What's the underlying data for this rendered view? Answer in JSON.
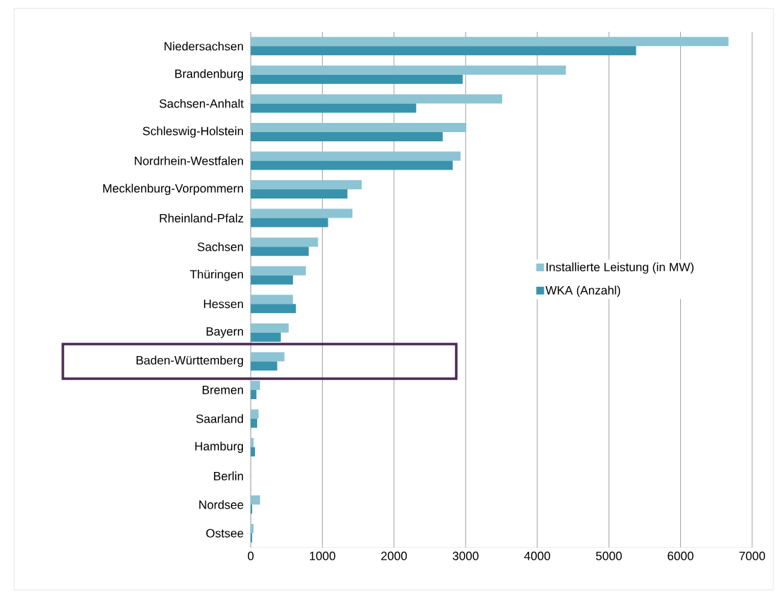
{
  "chart_data": {
    "type": "bar",
    "orientation": "horizontal",
    "categories": [
      "Niedersachsen",
      "Brandenburg",
      "Sachsen-Anhalt",
      "Schleswig-Holstein",
      "Nordrhein-Westfalen",
      "Mecklenburg-Vorpommern",
      "Rheinland-Pfalz",
      "Sachsen",
      "Thüringen",
      "Hessen",
      "Bayern",
      "Baden-Württemberg",
      "Bremen",
      "Saarland",
      "Hamburg",
      "Berlin",
      "Nordsee",
      "Ostsee"
    ],
    "series": [
      {
        "name": "Installierte Leistung (in MW)",
        "color": "#8cc4d4",
        "values": [
          6670,
          4400,
          3510,
          3010,
          2930,
          1550,
          1420,
          940,
          770,
          590,
          530,
          470,
          130,
          110,
          40,
          0,
          130,
          40
        ]
      },
      {
        "name": "WKA (Anzahl)",
        "color": "#3a93ad",
        "values": [
          5380,
          2960,
          2310,
          2680,
          2820,
          1350,
          1080,
          810,
          590,
          630,
          420,
          370,
          80,
          90,
          60,
          0,
          20,
          20
        ]
      }
    ],
    "xlim": [
      0,
      7000
    ],
    "xticks": [
      0,
      1000,
      2000,
      3000,
      4000,
      5000,
      6000,
      7000
    ],
    "grid": "x",
    "legend": "right"
  }
}
